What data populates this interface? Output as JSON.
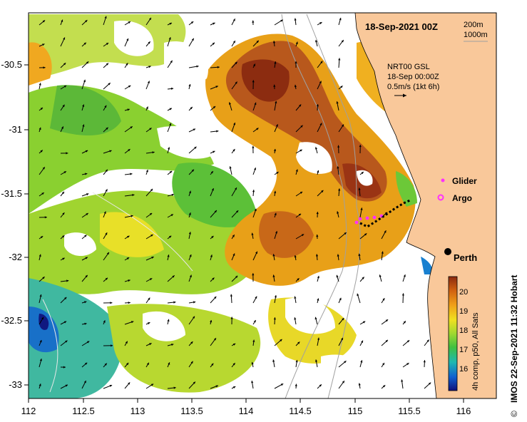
{
  "map": {
    "title": "18-Sep-2021 00Z",
    "depth_contours": [
      "200m",
      "1000m"
    ],
    "current_info": [
      "NRT00 GSL",
      "18-Sep 00:00Z",
      "0.5m/s (1kt 6h)"
    ],
    "city": "Perth",
    "legend": {
      "glider": "Glider",
      "argo": "Argo"
    },
    "credit": "IMOS 22-Sep-2021 11:32 Hobart",
    "copyright": "©"
  },
  "axes": {
    "x_ticks": [
      "112",
      "112.5",
      "113",
      "113.5",
      "114",
      "114.5",
      "115",
      "115.5",
      "116"
    ],
    "y_ticks": [
      "-30.5",
      "-31",
      "-31.5",
      "-32",
      "-32.5",
      "-33"
    ]
  },
  "colorbar": {
    "ticks": [
      "20",
      "19",
      "18",
      "17",
      "16"
    ],
    "label": "4h comp, p50, All Sats"
  },
  "colors": {
    "land": "#f9c89a",
    "warm": "#a4481c",
    "mid": "#e89a18",
    "cool": "#80d030",
    "cold": "#18a0c0"
  }
}
